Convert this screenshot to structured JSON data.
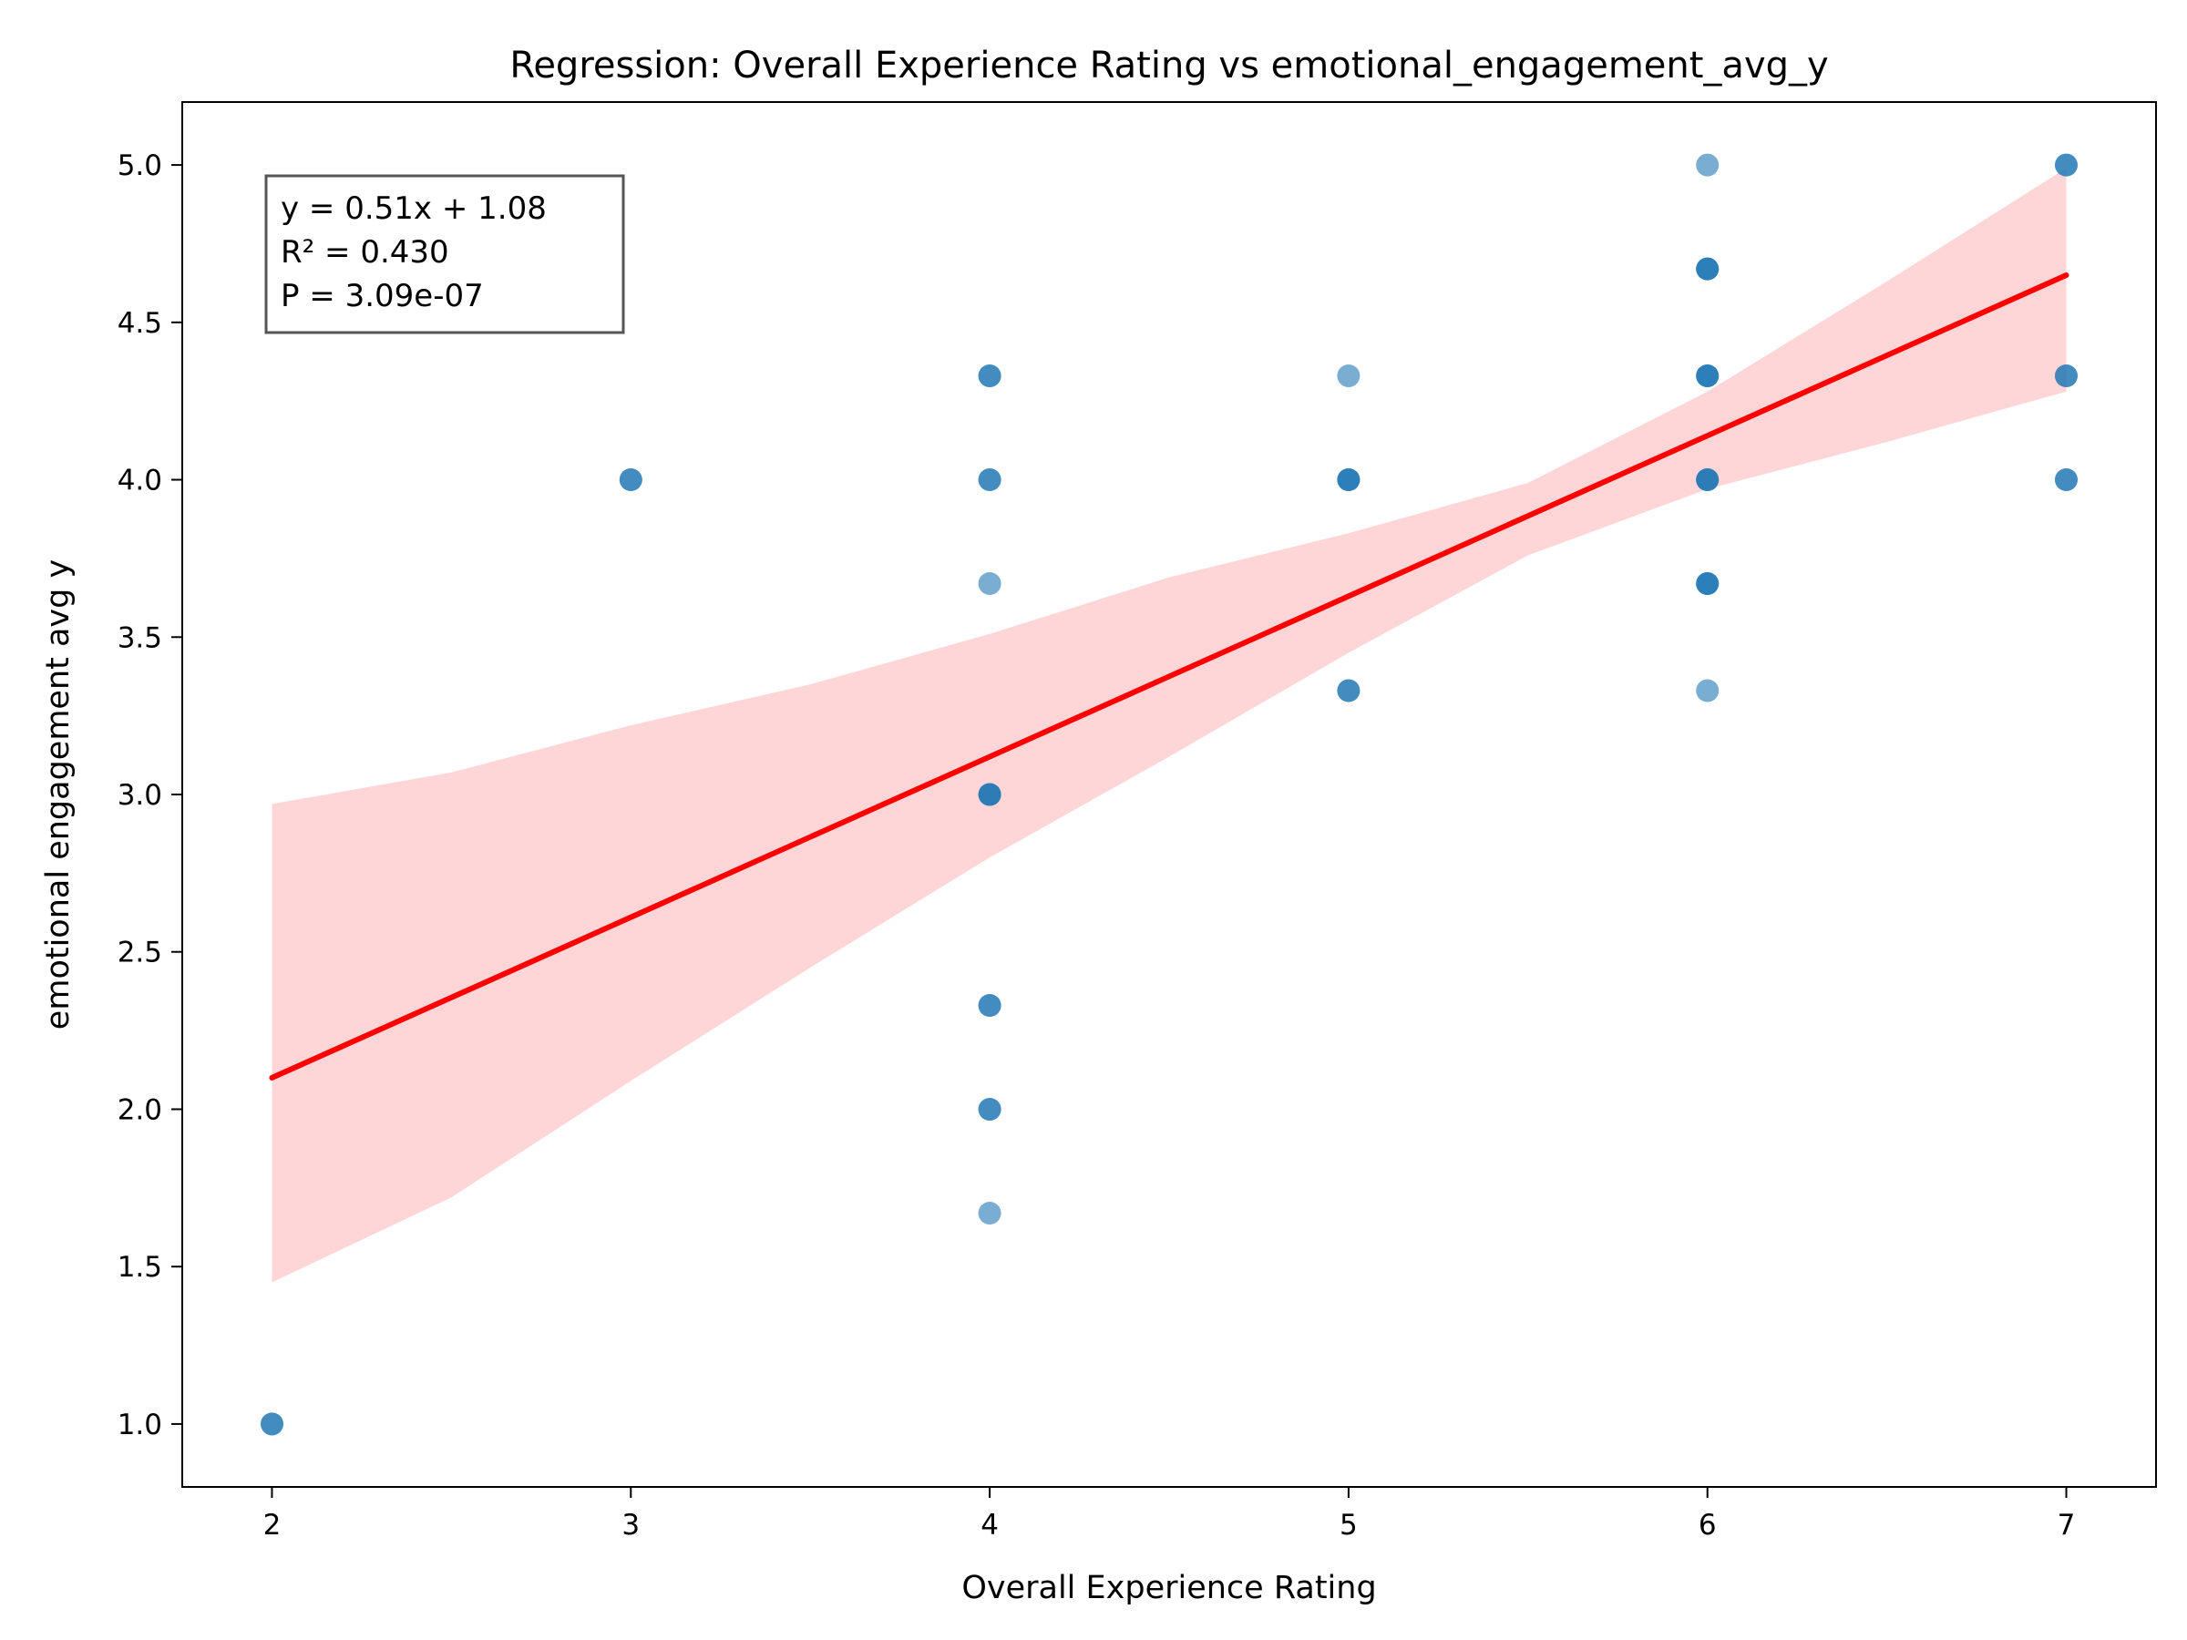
{
  "chart_data": {
    "type": "scatter",
    "title": "Regression: Overall Experience Rating vs emotional_engagement_avg_y",
    "xlabel": "Overall Experience Rating",
    "ylabel": "emotional engagement avg y",
    "xlim": [
      1.75,
      7.25
    ],
    "ylim": [
      0.8,
      5.2
    ],
    "x_ticks": [
      "2",
      "3",
      "4",
      "5",
      "6",
      "7"
    ],
    "y_ticks": [
      "1.0",
      "1.5",
      "2.0",
      "2.5",
      "3.0",
      "3.5",
      "4.0",
      "4.5",
      "5.0"
    ],
    "grid": false,
    "colors": {
      "points": "#1f77b4",
      "regression_line": "#ff0000",
      "confidence_band": "#ffd6d8"
    },
    "points": [
      {
        "x": 2,
        "y": 1.0
      },
      {
        "x": 2,
        "y": 1.0
      },
      {
        "x": 3,
        "y": 4.0
      },
      {
        "x": 3,
        "y": 4.0
      },
      {
        "x": 4,
        "y": 4.33
      },
      {
        "x": 4,
        "y": 4.33
      },
      {
        "x": 4,
        "y": 4.0
      },
      {
        "x": 4,
        "y": 4.0
      },
      {
        "x": 4,
        "y": 3.67
      },
      {
        "x": 4,
        "y": 3.0
      },
      {
        "x": 4,
        "y": 3.0
      },
      {
        "x": 4,
        "y": 3.0
      },
      {
        "x": 4,
        "y": 2.33
      },
      {
        "x": 4,
        "y": 2.33
      },
      {
        "x": 4,
        "y": 2.0
      },
      {
        "x": 4,
        "y": 2.0
      },
      {
        "x": 4,
        "y": 1.67
      },
      {
        "x": 5,
        "y": 4.33
      },
      {
        "x": 5,
        "y": 4.0
      },
      {
        "x": 5,
        "y": 4.0
      },
      {
        "x": 5,
        "y": 4.0
      },
      {
        "x": 5,
        "y": 3.33
      },
      {
        "x": 5,
        "y": 3.33
      },
      {
        "x": 6,
        "y": 5.0
      },
      {
        "x": 6,
        "y": 4.67
      },
      {
        "x": 6,
        "y": 4.67
      },
      {
        "x": 6,
        "y": 4.67
      },
      {
        "x": 6,
        "y": 4.33
      },
      {
        "x": 6,
        "y": 4.33
      },
      {
        "x": 6,
        "y": 4.33
      },
      {
        "x": 6,
        "y": 4.0
      },
      {
        "x": 6,
        "y": 4.0
      },
      {
        "x": 6,
        "y": 4.0
      },
      {
        "x": 6,
        "y": 3.67
      },
      {
        "x": 6,
        "y": 3.67
      },
      {
        "x": 6,
        "y": 3.67
      },
      {
        "x": 6,
        "y": 3.33
      },
      {
        "x": 7,
        "y": 5.0
      },
      {
        "x": 7,
        "y": 5.0
      },
      {
        "x": 7,
        "y": 4.33
      },
      {
        "x": 7,
        "y": 4.33
      },
      {
        "x": 7,
        "y": 4.0
      },
      {
        "x": 7,
        "y": 4.0
      }
    ],
    "regression": {
      "slope": 0.51,
      "intercept": 1.08,
      "x_range": [
        2,
        7
      ]
    },
    "confidence_band": [
      {
        "x": 2.0,
        "lower": 1.45,
        "upper": 2.97
      },
      {
        "x": 2.5,
        "lower": 1.72,
        "upper": 3.07
      },
      {
        "x": 3.0,
        "lower": 2.09,
        "upper": 3.22
      },
      {
        "x": 3.5,
        "lower": 2.45,
        "upper": 3.35
      },
      {
        "x": 4.0,
        "lower": 2.8,
        "upper": 3.51
      },
      {
        "x": 4.5,
        "lower": 3.12,
        "upper": 3.69
      },
      {
        "x": 5.0,
        "lower": 3.45,
        "upper": 3.83
      },
      {
        "x": 5.5,
        "lower": 3.76,
        "upper": 3.99
      },
      {
        "x": 6.0,
        "lower": 3.97,
        "upper": 4.28
      },
      {
        "x": 6.5,
        "lower": 4.12,
        "upper": 4.63
      },
      {
        "x": 7.0,
        "lower": 4.28,
        "upper": 4.99
      }
    ],
    "annotation": [
      "y = 0.51x + 1.08",
      "R² = 0.430",
      "P = 3.09e-07"
    ]
  }
}
